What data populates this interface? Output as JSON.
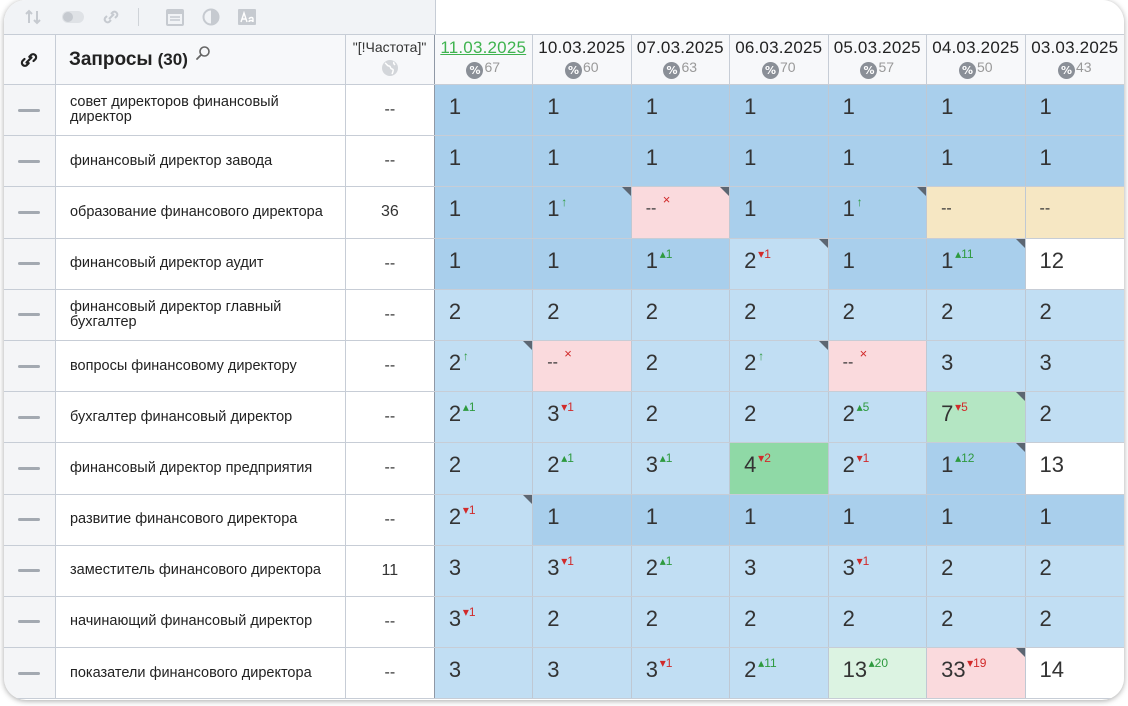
{
  "header": {
    "query_title": "Запросы",
    "query_count": "(30)",
    "freq_label": "\"[!Частота]\""
  },
  "dates": [
    {
      "date": "11.03.2025",
      "pct": "67",
      "active": true
    },
    {
      "date": "10.03.2025",
      "pct": "60"
    },
    {
      "date": "07.03.2025",
      "pct": "63"
    },
    {
      "date": "06.03.2025",
      "pct": "70"
    },
    {
      "date": "05.03.2025",
      "pct": "57"
    },
    {
      "date": "04.03.2025",
      "pct": "50"
    },
    {
      "date": "03.03.2025",
      "pct": "43"
    }
  ],
  "pct_badge": "%",
  "rows": [
    {
      "query": "совет директоров финансовый директор",
      "freq": "--",
      "cells": [
        {
          "v": "1",
          "bg": "blue"
        },
        {
          "v": "1",
          "bg": "blue"
        },
        {
          "v": "1",
          "bg": "blue"
        },
        {
          "v": "1",
          "bg": "blue"
        },
        {
          "v": "1",
          "bg": "blue"
        },
        {
          "v": "1",
          "bg": "blue"
        },
        {
          "v": "1",
          "bg": "blue"
        }
      ]
    },
    {
      "query": "финансовый директор завода",
      "freq": "--",
      "cells": [
        {
          "v": "1",
          "bg": "blue"
        },
        {
          "v": "1",
          "bg": "blue"
        },
        {
          "v": "1",
          "bg": "blue"
        },
        {
          "v": "1",
          "bg": "blue"
        },
        {
          "v": "1",
          "bg": "blue"
        },
        {
          "v": "1",
          "bg": "blue"
        },
        {
          "v": "1",
          "bg": "blue"
        }
      ]
    },
    {
      "query": "образование финансового директора",
      "freq": "36",
      "cells": [
        {
          "v": "1",
          "bg": "blue"
        },
        {
          "v": "1",
          "bg": "blue",
          "d": "↑",
          "dir": "up",
          "c": true
        },
        {
          "v": "--",
          "bg": "pink",
          "d": "×",
          "dir": "x",
          "c": true
        },
        {
          "v": "1",
          "bg": "blue"
        },
        {
          "v": "1",
          "bg": "blue",
          "d": "↑",
          "dir": "up",
          "c": true
        },
        {
          "v": "--",
          "bg": "beige"
        },
        {
          "v": "--",
          "bg": "beige"
        }
      ]
    },
    {
      "query": "финансовый директор аудит",
      "freq": "--",
      "cells": [
        {
          "v": "1",
          "bg": "blue"
        },
        {
          "v": "1",
          "bg": "blue"
        },
        {
          "v": "1",
          "bg": "blue",
          "d": "▴1",
          "dir": "up"
        },
        {
          "v": "2",
          "bg": "lblue",
          "d": "▾1",
          "dir": "down",
          "c": true
        },
        {
          "v": "1",
          "bg": "blue"
        },
        {
          "v": "1",
          "bg": "blue",
          "d": "▴11",
          "dir": "up",
          "c": true
        },
        {
          "v": "12",
          "bg": "white"
        }
      ]
    },
    {
      "query": "финансовый директор главный бухгалтер",
      "freq": "--",
      "cells": [
        {
          "v": "2",
          "bg": "lblue"
        },
        {
          "v": "2",
          "bg": "lblue"
        },
        {
          "v": "2",
          "bg": "lblue"
        },
        {
          "v": "2",
          "bg": "lblue"
        },
        {
          "v": "2",
          "bg": "lblue"
        },
        {
          "v": "2",
          "bg": "lblue"
        },
        {
          "v": "2",
          "bg": "lblue"
        }
      ]
    },
    {
      "query": "вопросы финансовому директору",
      "freq": "--",
      "cells": [
        {
          "v": "2",
          "bg": "lblue",
          "d": "↑",
          "dir": "up",
          "c": true
        },
        {
          "v": "--",
          "bg": "pink",
          "d": "×",
          "dir": "x"
        },
        {
          "v": "2",
          "bg": "lblue"
        },
        {
          "v": "2",
          "bg": "lblue",
          "d": "↑",
          "dir": "up",
          "c": true
        },
        {
          "v": "--",
          "bg": "pink",
          "d": "×",
          "dir": "x"
        },
        {
          "v": "3",
          "bg": "lblue"
        },
        {
          "v": "3",
          "bg": "lblue"
        }
      ]
    },
    {
      "query": "бухгалтер финансовый директор",
      "freq": "--",
      "cells": [
        {
          "v": "2",
          "bg": "lblue",
          "d": "▴1",
          "dir": "up"
        },
        {
          "v": "3",
          "bg": "lblue",
          "d": "▾1",
          "dir": "down"
        },
        {
          "v": "2",
          "bg": "lblue"
        },
        {
          "v": "2",
          "bg": "lblue"
        },
        {
          "v": "2",
          "bg": "lblue",
          "d": "▴5",
          "dir": "up"
        },
        {
          "v": "7",
          "bg": "green",
          "d": "▾5",
          "dir": "down",
          "c": true
        },
        {
          "v": "2",
          "bg": "lblue"
        }
      ]
    },
    {
      "query": "финансовый директор предприятия",
      "freq": "--",
      "cells": [
        {
          "v": "2",
          "bg": "lblue"
        },
        {
          "v": "2",
          "bg": "lblue",
          "d": "▴1",
          "dir": "up"
        },
        {
          "v": "3",
          "bg": "lblue",
          "d": "▴1",
          "dir": "up"
        },
        {
          "v": "4",
          "bg": "dgreen",
          "d": "▾2",
          "dir": "down"
        },
        {
          "v": "2",
          "bg": "lblue",
          "d": "▾1",
          "dir": "down"
        },
        {
          "v": "1",
          "bg": "blue",
          "d": "▴12",
          "dir": "up",
          "c": true
        },
        {
          "v": "13",
          "bg": "white"
        }
      ]
    },
    {
      "query": "развитие финансового директора",
      "freq": "--",
      "cells": [
        {
          "v": "2",
          "bg": "lblue",
          "d": "▾1",
          "dir": "down",
          "c": true
        },
        {
          "v": "1",
          "bg": "blue"
        },
        {
          "v": "1",
          "bg": "blue"
        },
        {
          "v": "1",
          "bg": "blue"
        },
        {
          "v": "1",
          "bg": "blue"
        },
        {
          "v": "1",
          "bg": "blue"
        },
        {
          "v": "1",
          "bg": "blue"
        }
      ]
    },
    {
      "query": "заместитель финансового директора",
      "freq": "11",
      "cells": [
        {
          "v": "3",
          "bg": "lblue"
        },
        {
          "v": "3",
          "bg": "lblue",
          "d": "▾1",
          "dir": "down"
        },
        {
          "v": "2",
          "bg": "lblue",
          "d": "▴1",
          "dir": "up"
        },
        {
          "v": "3",
          "bg": "lblue"
        },
        {
          "v": "3",
          "bg": "lblue",
          "d": "▾1",
          "dir": "down"
        },
        {
          "v": "2",
          "bg": "lblue"
        },
        {
          "v": "2",
          "bg": "lblue"
        }
      ]
    },
    {
      "query": "начинающий финансовый директор",
      "freq": "--",
      "cells": [
        {
          "v": "3",
          "bg": "lblue",
          "d": "▾1",
          "dir": "down"
        },
        {
          "v": "2",
          "bg": "lblue"
        },
        {
          "v": "2",
          "bg": "lblue"
        },
        {
          "v": "2",
          "bg": "lblue"
        },
        {
          "v": "2",
          "bg": "lblue"
        },
        {
          "v": "2",
          "bg": "lblue"
        },
        {
          "v": "2",
          "bg": "lblue"
        }
      ]
    },
    {
      "query": "показатели финансового директора",
      "freq": "--",
      "cells": [
        {
          "v": "3",
          "bg": "lblue"
        },
        {
          "v": "3",
          "bg": "lblue"
        },
        {
          "v": "3",
          "bg": "lblue",
          "d": "▾1",
          "dir": "down"
        },
        {
          "v": "2",
          "bg": "lblue",
          "d": "▴11",
          "dir": "up"
        },
        {
          "v": "13",
          "bg": "lgreen",
          "d": "▴20",
          "dir": "up"
        },
        {
          "v": "33",
          "bg": "pink",
          "d": "▾19",
          "dir": "down",
          "c": true
        },
        {
          "v": "14",
          "bg": "white"
        }
      ]
    }
  ]
}
